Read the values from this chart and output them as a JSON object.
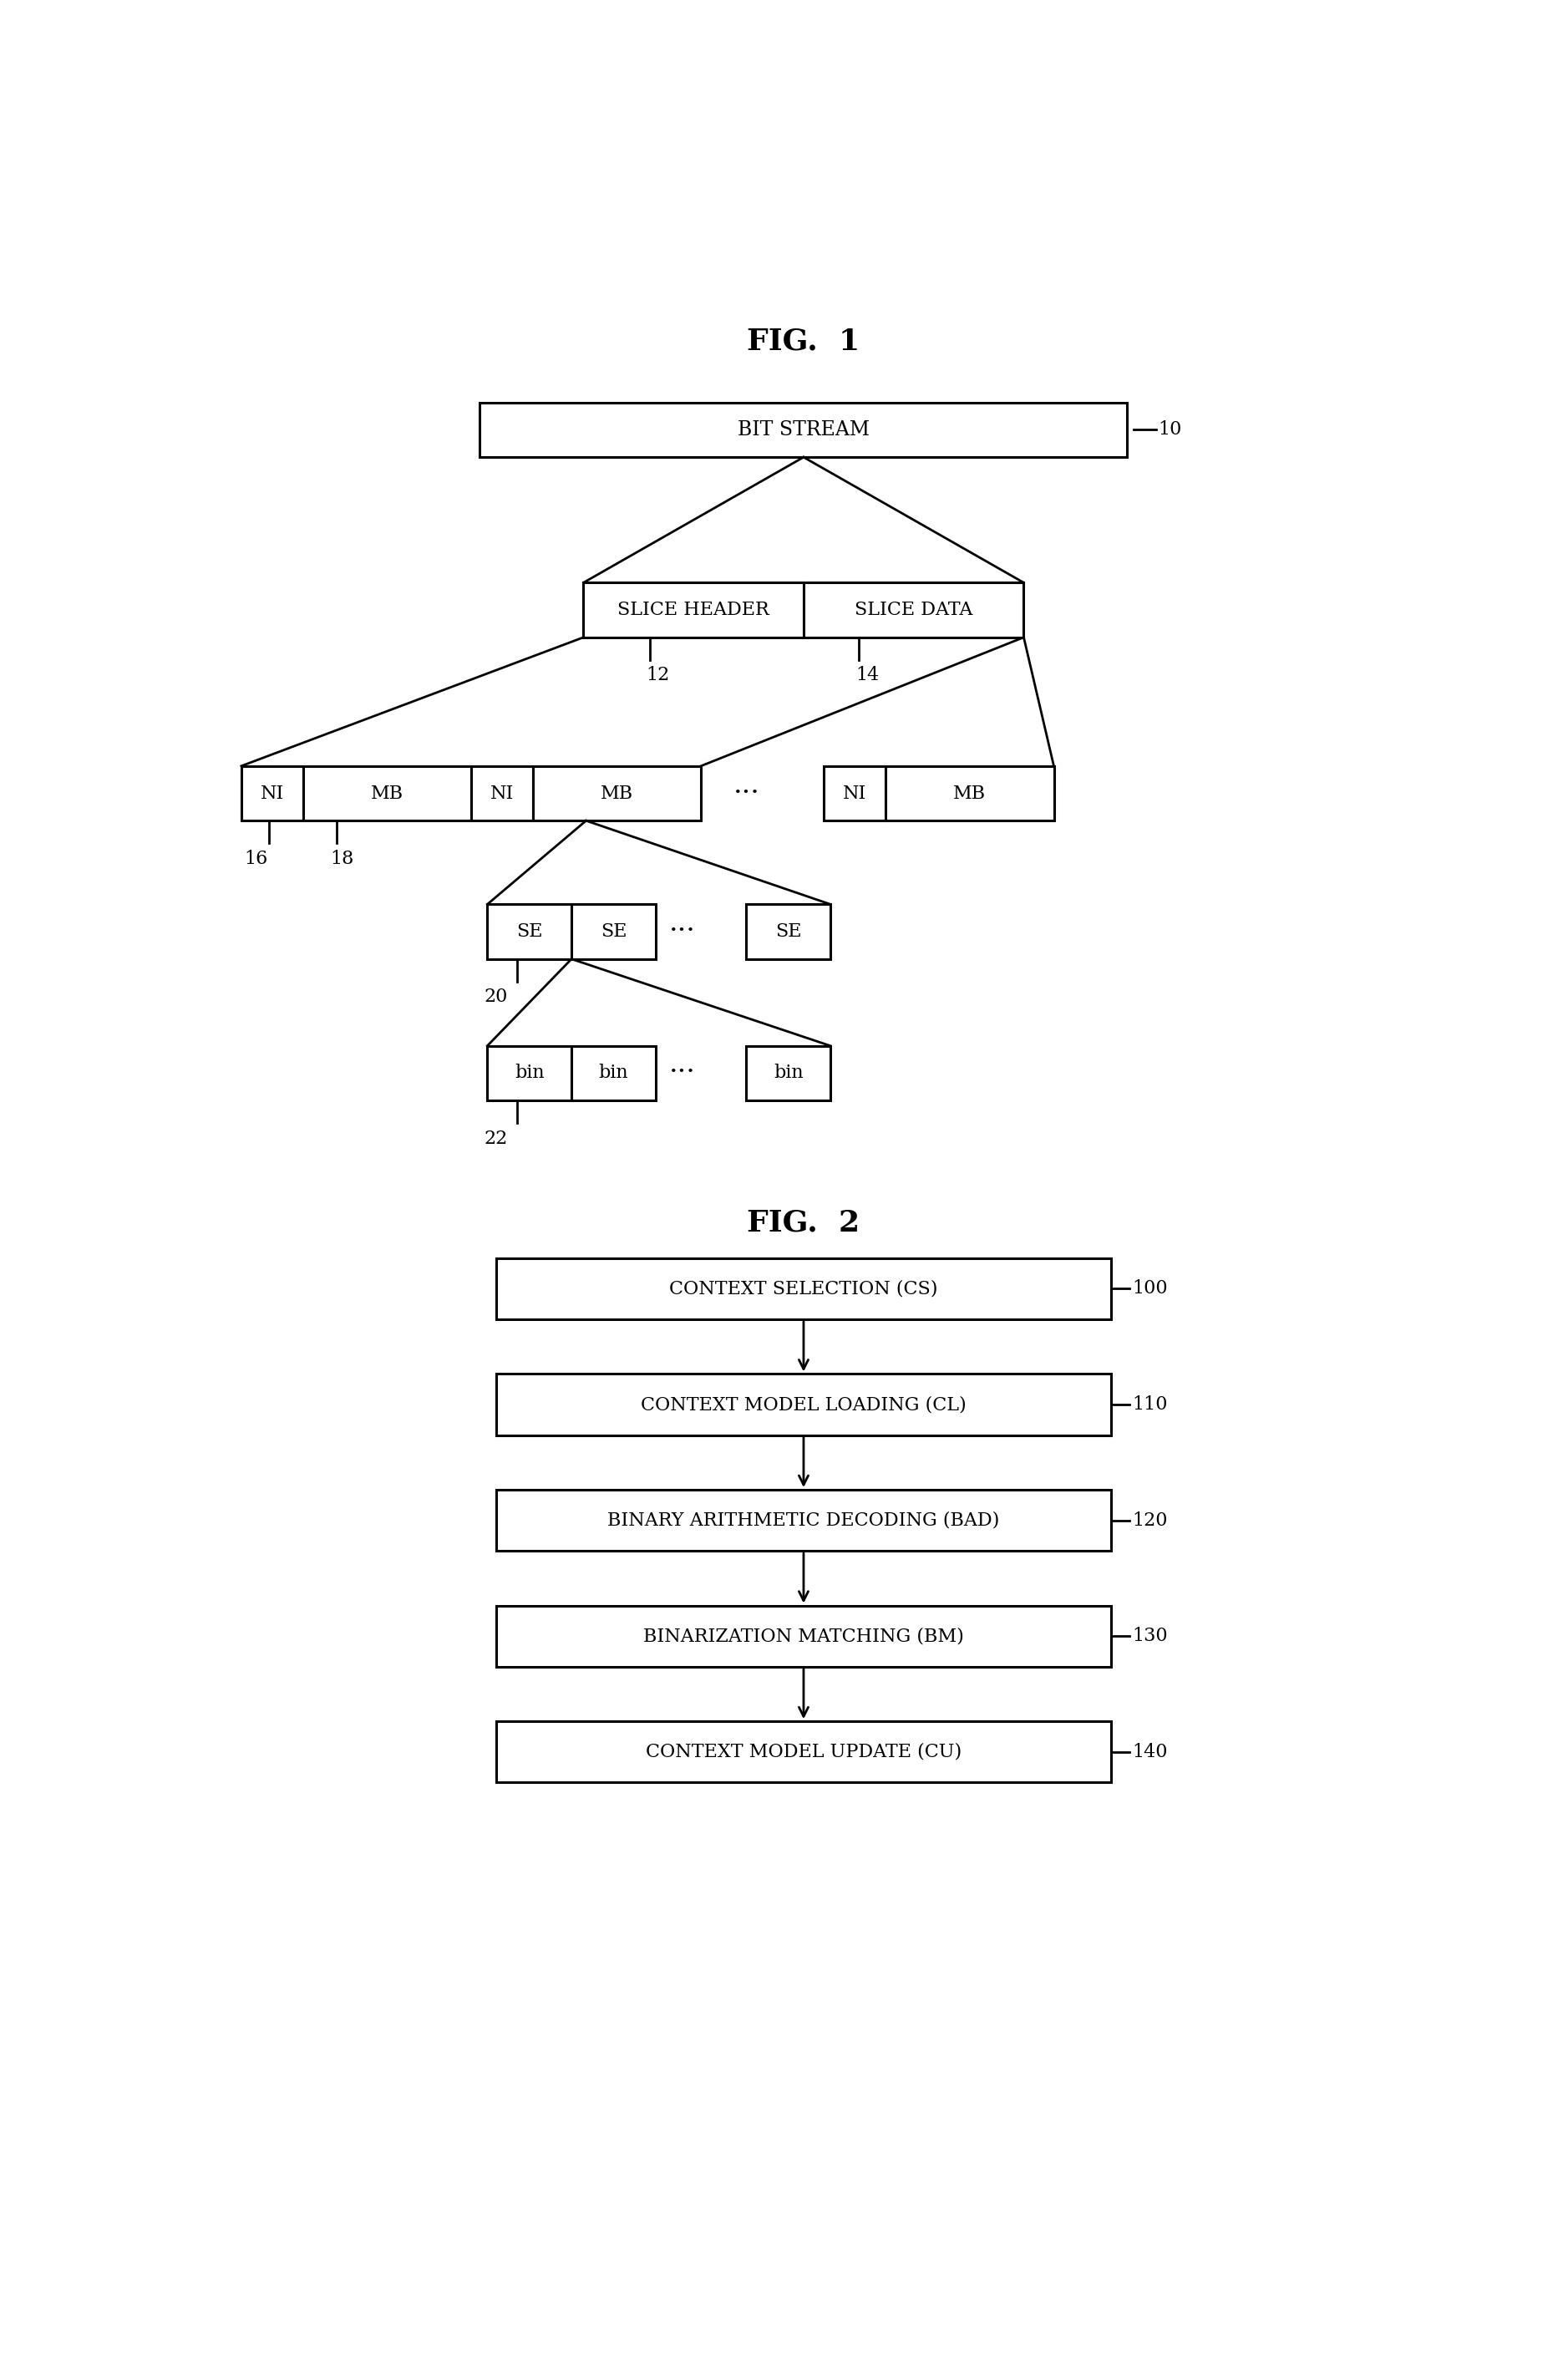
{
  "fig1_title": "FIG.  1",
  "fig2_title": "FIG.  2",
  "bg_color": "#ffffff",
  "box_color": "#ffffff",
  "line_color": "#000000",
  "text_color": "#000000",
  "fig1": {
    "bit_stream": {
      "label": "BIT STREAM",
      "ref": "10"
    },
    "slice_header": {
      "label": "SLICE HEADER",
      "ref": "12"
    },
    "slice_data": {
      "label": "SLICE DATA",
      "ref": "14"
    },
    "level3_refs": [
      "16",
      "18"
    ],
    "se_ref": "20",
    "bin_ref": "22"
  },
  "fig2": {
    "boxes": [
      {
        "label": "CONTEXT SELECTION (CS)",
        "ref": "100"
      },
      {
        "label": "CONTEXT MODEL LOADING (CL)",
        "ref": "110"
      },
      {
        "label": "BINARY ARITHMETIC DECODING (BAD)",
        "ref": "120"
      },
      {
        "label": "BINARIZATION MATCHING (BM)",
        "ref": "130"
      },
      {
        "label": "CONTEXT MODEL UPDATE (CU)",
        "ref": "140"
      }
    ]
  }
}
